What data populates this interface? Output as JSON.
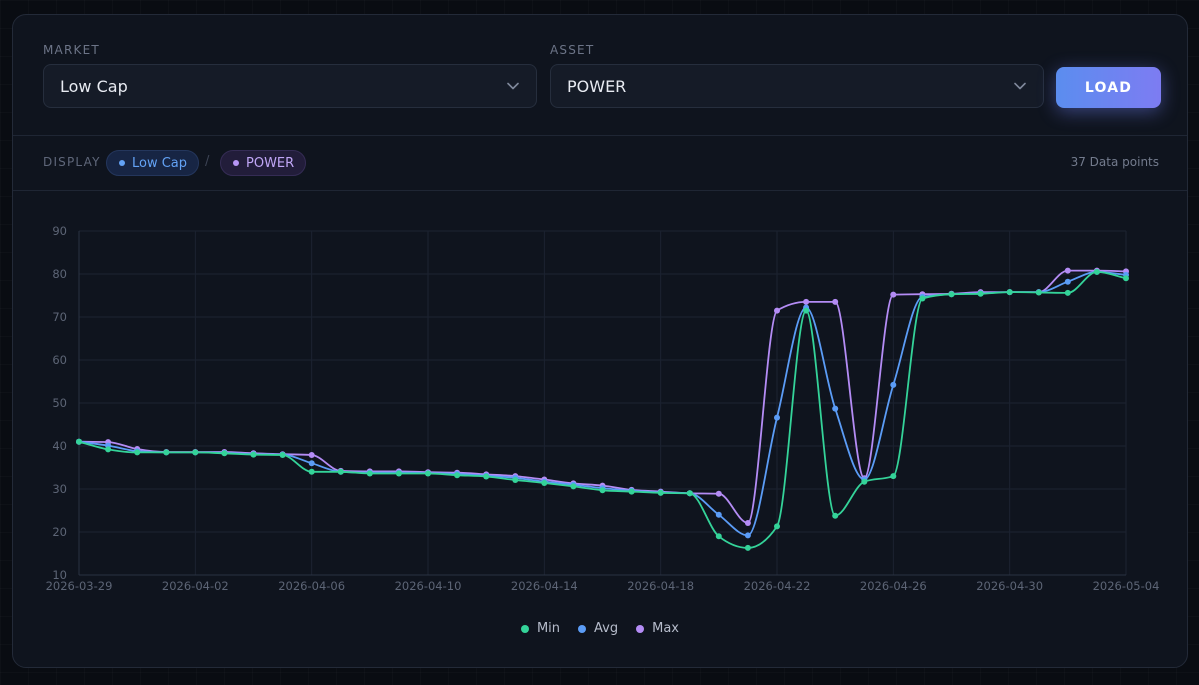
{
  "controls": {
    "market_label": "MARKET",
    "market_value": "Low Cap",
    "asset_label": "ASSET",
    "asset_value": "POWER",
    "load_label": "LOAD"
  },
  "display": {
    "label": "DISPLAY",
    "market_pill": "Low Cap",
    "separator": "/",
    "asset_pill": "POWER",
    "count": "37 Data points"
  },
  "legend": [
    {
      "label": "Min",
      "color": "#34d399"
    },
    {
      "label": "Avg",
      "color": "#5b9cf6"
    },
    {
      "label": "Max",
      "color": "#b48cf5"
    }
  ],
  "chart_data": {
    "type": "line",
    "title": "",
    "xlabel": "",
    "ylabel": "",
    "ylim": [
      10,
      90
    ],
    "yticks": [
      10,
      20,
      30,
      40,
      50,
      60,
      70,
      80,
      90
    ],
    "xticks": [
      "2026-03-29",
      "2026-04-02",
      "2026-04-06",
      "2026-04-10",
      "2026-04-14",
      "2026-04-18",
      "2026-04-22",
      "2026-04-26",
      "2026-04-30",
      "2026-05-04"
    ],
    "grid": true,
    "legend_position": "bottom-center",
    "x": [
      "2026-03-29",
      "2026-03-30",
      "2026-03-31",
      "2026-04-01",
      "2026-04-02",
      "2026-04-03",
      "2026-04-04",
      "2026-04-05",
      "2026-04-06",
      "2026-04-07",
      "2026-04-08",
      "2026-04-09",
      "2026-04-10",
      "2026-04-11",
      "2026-04-12",
      "2026-04-13",
      "2026-04-14",
      "2026-04-15",
      "2026-04-16",
      "2026-04-17",
      "2026-04-18",
      "2026-04-19",
      "2026-04-20",
      "2026-04-21",
      "2026-04-22",
      "2026-04-23",
      "2026-04-24",
      "2026-04-25",
      "2026-04-26",
      "2026-04-27",
      "2026-04-28",
      "2026-04-29",
      "2026-04-30",
      "2026-05-01",
      "2026-05-02",
      "2026-05-03",
      "2026-05-04"
    ],
    "series": [
      {
        "name": "Min",
        "color": "#34d399",
        "values": [
          41.0,
          39.2,
          38.5,
          38.5,
          38.5,
          38.3,
          38.0,
          37.9,
          34.0,
          34.0,
          33.6,
          33.6,
          33.6,
          33.2,
          32.9,
          32.1,
          31.4,
          30.6,
          29.7,
          29.4,
          29.1,
          29.0,
          19.0,
          16.3,
          21.3,
          71.5,
          23.8,
          31.7,
          33.0,
          74.3,
          75.3,
          75.4,
          75.8,
          75.7,
          75.6,
          80.5,
          79.0
        ]
      },
      {
        "name": "Avg",
        "color": "#5b9cf6",
        "values": [
          41.0,
          40.1,
          38.8,
          38.5,
          38.5,
          38.4,
          38.1,
          38.0,
          36.0,
          34.0,
          33.8,
          33.8,
          33.7,
          33.5,
          33.1,
          32.6,
          31.7,
          31.0,
          30.2,
          29.6,
          29.2,
          29.0,
          24.0,
          19.2,
          46.6,
          72.2,
          48.7,
          32.2,
          54.2,
          74.7,
          75.3,
          75.5,
          75.8,
          75.8,
          78.2,
          80.5,
          79.8
        ]
      },
      {
        "name": "Max",
        "color": "#b48cf5",
        "values": [
          41.0,
          40.9,
          39.3,
          38.6,
          38.6,
          38.6,
          38.3,
          38.1,
          37.9,
          34.2,
          34.1,
          34.1,
          33.9,
          33.8,
          33.4,
          33.0,
          32.2,
          31.3,
          30.8,
          29.8,
          29.4,
          29.0,
          28.9,
          22.1,
          71.5,
          73.5,
          73.5,
          32.5,
          75.2,
          75.3,
          75.4,
          75.8,
          75.8,
          75.8,
          80.8,
          80.8,
          80.6
        ]
      }
    ]
  }
}
